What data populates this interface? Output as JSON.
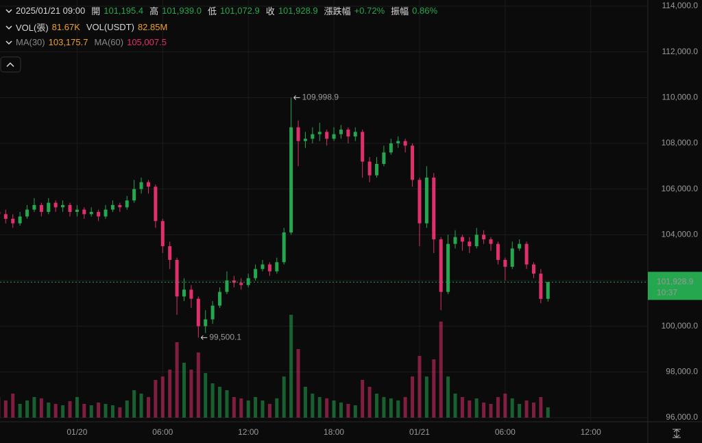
{
  "header": {
    "time": "2025/01/21 09:00",
    "open_label": "開",
    "open": "101,195.4",
    "high_label": "高",
    "high": "101,939.0",
    "low_label": "低",
    "low": "101,072.9",
    "close_label": "收",
    "close": "101,928.9",
    "change_label": "漲跌幅",
    "change": "+0.72%",
    "amplitude_label": "振幅",
    "amplitude": "0.86%"
  },
  "volume_row": {
    "vol_label": "VOL(張)",
    "vol": "81.67K",
    "vol_usdt_label": "VOL(USDT)",
    "vol_usdt": "82.85M"
  },
  "ma_row": {
    "ma30_label": "MA(30)",
    "ma30": "103,175.7",
    "ma60_label": "MA(60)",
    "ma60": "105,007.5"
  },
  "chart_data": {
    "type": "candlestick",
    "x": [
      -5.5,
      -5,
      -4.5,
      -4,
      -3.5,
      -3,
      -2.5,
      -2,
      -1.5,
      -1,
      -0.5,
      0,
      0.5,
      1,
      1.5,
      2,
      2.5,
      3,
      3.5,
      4,
      4.5,
      5,
      5.5,
      6,
      6.5,
      7,
      7.5,
      8,
      8.5,
      9,
      9.5,
      10,
      10.5,
      11,
      11.5,
      12,
      12.5,
      13,
      13.5,
      14,
      14.5,
      15,
      15.5,
      16,
      16.5,
      17,
      17.5,
      18,
      18.5,
      19,
      19.5,
      20,
      20.5,
      21,
      21.5,
      22,
      22.5,
      23,
      23.5,
      24,
      24.5,
      25,
      25.5,
      26,
      26.5,
      27,
      27.5,
      28,
      28.5,
      29,
      29.5,
      30,
      30.5,
      31,
      31.5,
      32,
      32.5,
      33
    ],
    "open": [
      105000,
      104900,
      104700,
      104500,
      104800,
      105100,
      105300,
      105000,
      105400,
      105200,
      105300,
      105000,
      105100,
      104900,
      105000,
      104800,
      105100,
      105300,
      105200,
      105500,
      106000,
      106300,
      106100,
      104600,
      103500,
      102900,
      101300,
      101600,
      101200,
      100000,
      100300,
      100900,
      101500,
      102000,
      101900,
      101800,
      102100,
      102500,
      102700,
      102400,
      102800,
      104100,
      108700,
      108100,
      108200,
      108400,
      108500,
      108200,
      108400,
      108600,
      108300,
      108500,
      107200,
      106600,
      107100,
      107600,
      108000,
      108100,
      107900,
      106400,
      104500,
      106500,
      103800,
      101500,
      103600,
      103900,
      103700,
      103500,
      104000,
      103800,
      103600,
      102900,
      102600,
      103400,
      103600,
      102700,
      102300,
      101195.4
    ],
    "high": [
      105300,
      105100,
      104900,
      105000,
      105300,
      105600,
      105400,
      105600,
      105500,
      105500,
      105400,
      105300,
      105200,
      105200,
      105100,
      105300,
      105500,
      105400,
      105700,
      106400,
      106500,
      106400,
      106200,
      104700,
      103700,
      103000,
      102100,
      101800,
      101300,
      100700,
      101100,
      101700,
      102400,
      102200,
      102100,
      102300,
      102700,
      102900,
      102800,
      103000,
      104300,
      109998.9,
      109000,
      108500,
      108700,
      108900,
      108600,
      108700,
      108800,
      108700,
      108700,
      108600,
      107400,
      107400,
      107900,
      108200,
      108300,
      108200,
      108000,
      106500,
      107000,
      106700,
      103900,
      104000,
      104200,
      104000,
      103900,
      104300,
      104200,
      103900,
      103700,
      103000,
      103700,
      103800,
      103700,
      102800,
      102500,
      101939
    ],
    "low": [
      104700,
      104500,
      104300,
      104400,
      104700,
      105000,
      104800,
      104900,
      105000,
      105000,
      104800,
      104800,
      104700,
      104800,
      104600,
      104700,
      105000,
      105000,
      105100,
      105400,
      105800,
      105800,
      104300,
      103200,
      102500,
      100500,
      101100,
      100800,
      99500.1,
      99700,
      100100,
      100800,
      101400,
      101700,
      101600,
      101700,
      102000,
      102400,
      102200,
      102300,
      102700,
      104000,
      107000,
      107800,
      108000,
      108100,
      107900,
      108100,
      108200,
      108000,
      108100,
      106500,
      106300,
      106500,
      107000,
      107500,
      107800,
      107600,
      106100,
      103500,
      104300,
      103200,
      100700,
      101400,
      103400,
      103300,
      103200,
      103400,
      103600,
      103300,
      102700,
      102000,
      102500,
      103300,
      102500,
      102100,
      101000,
      101072.9
    ],
    "close": [
      104900,
      104700,
      104500,
      104800,
      105100,
      105300,
      105000,
      105400,
      105200,
      105300,
      105000,
      105100,
      104900,
      105000,
      104800,
      105100,
      105300,
      105200,
      105500,
      106000,
      106300,
      106100,
      104600,
      103500,
      102900,
      101300,
      101600,
      101200,
      100000,
      100300,
      100900,
      101500,
      102000,
      101900,
      101800,
      102100,
      102500,
      102700,
      102400,
      102800,
      104100,
      108700,
      108100,
      108200,
      108400,
      108500,
      108200,
      108400,
      108600,
      108300,
      108500,
      107200,
      106600,
      107100,
      107600,
      108000,
      108100,
      107900,
      106400,
      104500,
      106500,
      103800,
      101500,
      103600,
      103900,
      103700,
      103500,
      104000,
      103800,
      103600,
      102900,
      102600,
      103400,
      103600,
      102700,
      102300,
      101195.4,
      101928.9
    ],
    "volume": [
      30,
      25,
      35,
      20,
      25,
      30,
      28,
      22,
      20,
      18,
      24,
      30,
      20,
      18,
      22,
      20,
      18,
      15,
      25,
      40,
      35,
      30,
      55,
      60,
      70,
      110,
      80,
      70,
      95,
      65,
      50,
      45,
      40,
      30,
      28,
      25,
      30,
      25,
      20,
      28,
      60,
      150,
      100,
      45,
      35,
      30,
      28,
      25,
      22,
      20,
      18,
      55,
      45,
      35,
      30,
      28,
      25,
      30,
      60,
      90,
      60,
      85,
      140,
      60,
      35,
      30,
      25,
      28,
      22,
      20,
      30,
      35,
      28,
      20,
      25,
      22,
      30,
      15
    ],
    "up_color": "#25a750",
    "down_color": "#e0306b",
    "xlim": [
      -5.4,
      40
    ],
    "xticks": [
      {
        "value": 0,
        "label": "01/20"
      },
      {
        "value": 6,
        "label": "06:00"
      },
      {
        "value": 12,
        "label": "12:00"
      },
      {
        "value": 18,
        "label": "18:00"
      },
      {
        "value": 24,
        "label": "01/21"
      },
      {
        "value": 30,
        "label": "06:00"
      },
      {
        "value": 36,
        "label": "12:00"
      }
    ],
    "ylim": [
      96000,
      114000
    ],
    "yticks": [
      {
        "value": 96000,
        "label": "96,000.0"
      },
      {
        "value": 98000,
        "label": "98,000.0"
      },
      {
        "value": 100000,
        "label": "100,000.0"
      },
      {
        "value": 102000,
        "label": "102,000.0"
      },
      {
        "value": 104000,
        "label": "104,000.0"
      },
      {
        "value": 106000,
        "label": "106,000.0"
      },
      {
        "value": 108000,
        "label": "108,000.0"
      },
      {
        "value": 110000,
        "label": "110,000.0"
      },
      {
        "value": 112000,
        "label": "112,000.0"
      },
      {
        "value": 114000,
        "label": "114,000.0"
      }
    ],
    "grid": true,
    "annotations": [
      {
        "label": "109,998.9",
        "x": 15,
        "value": 109998.9
      },
      {
        "label": "99,500.1",
        "x": 8.5,
        "value": 99500.1
      }
    ],
    "last_price": {
      "value": 101928.9,
      "label": "101,928.9",
      "countdown": "10:37"
    }
  }
}
